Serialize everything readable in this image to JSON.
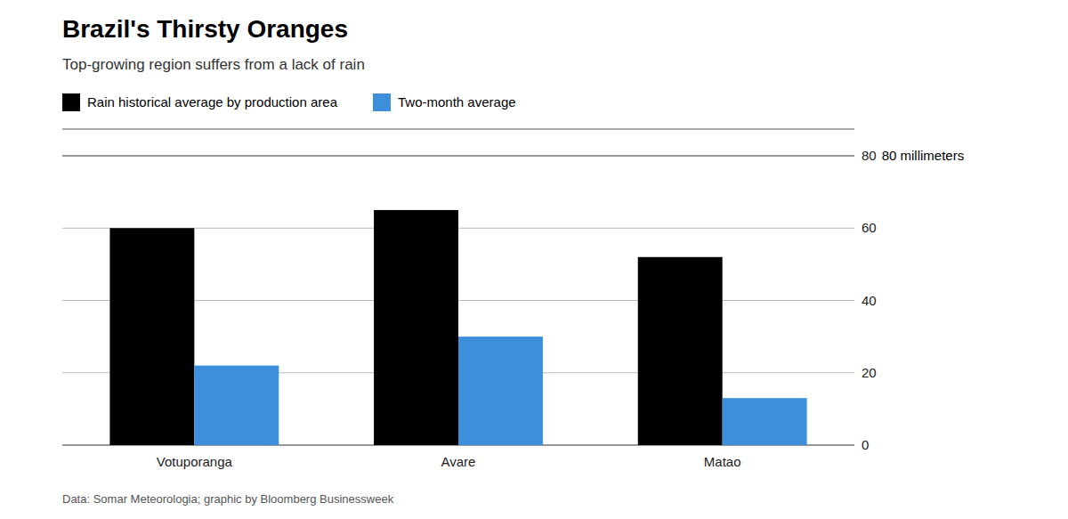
{
  "chart_data": {
    "type": "bar",
    "title": "Brazil's Thirsty Oranges",
    "subtitle": "Top-growing region suffers from a lack of rain",
    "annotation": "80 millimeters",
    "footer": "Data: Somar Meteorologia; graphic by Bloomberg Businessweek",
    "categories": [
      "Votuporanga",
      "Avare",
      "Matao"
    ],
    "series": [
      {
        "name": "Rain historical average by production area",
        "color": "#000000",
        "values": [
          60,
          65,
          52
        ]
      },
      {
        "name": "Two-month average",
        "color": "#3d8fdb",
        "values": [
          22,
          30,
          13
        ]
      }
    ],
    "ylim": [
      0,
      80
    ],
    "yticks": [
      0,
      20,
      40,
      60,
      80
    ],
    "grid": true,
    "legend": "top"
  }
}
